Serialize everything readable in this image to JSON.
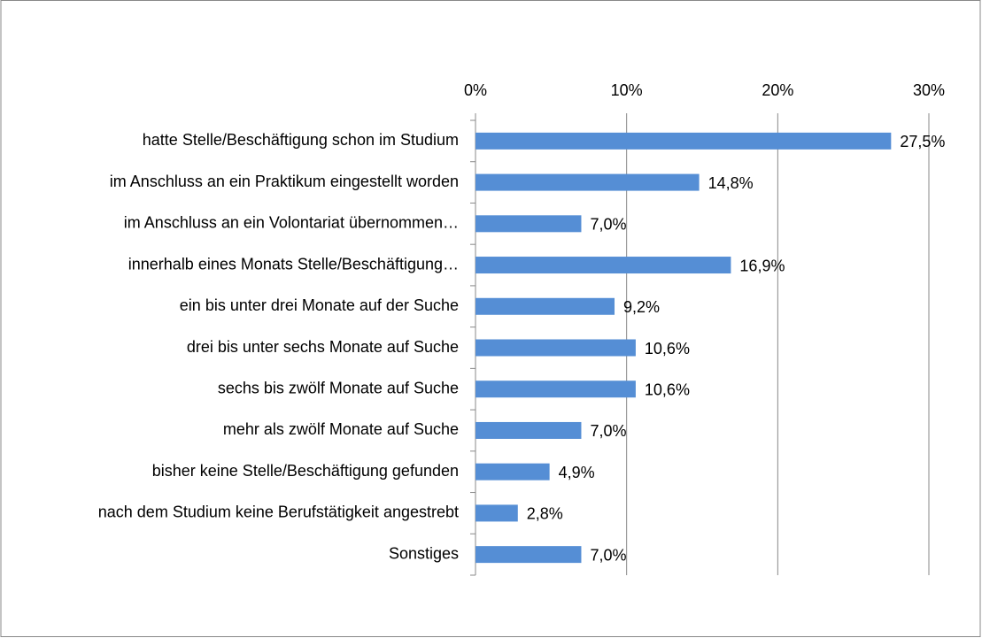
{
  "chart_data": {
    "type": "barh",
    "categories": [
      "hatte Stelle/Beschäftigung schon im Studium",
      "im Anschluss an ein Praktikum eingestellt worden",
      "im Anschluss an ein Volontariat übernommen…",
      "innerhalb eines Monats Stelle/Beschäftigung…",
      "ein bis unter drei Monate auf der Suche",
      "drei bis unter sechs Monate auf Suche",
      "sechs bis zwölf Monate auf Suche",
      "mehr als zwölf Monate auf Suche",
      "bisher keine Stelle/Beschäftigung gefunden",
      "nach dem Studium keine Berufstätigkeit angestrebt",
      "Sonstiges"
    ],
    "values": [
      27.5,
      14.8,
      7.0,
      16.9,
      9.2,
      10.6,
      10.6,
      7.0,
      4.9,
      2.8,
      7.0
    ],
    "value_labels": [
      "27,5%",
      "14,8%",
      "7,0%",
      "16,9%",
      "9,2%",
      "10,6%",
      "10,6%",
      "7,0%",
      "4,9%",
      "2,8%",
      "7,0%"
    ],
    "color": "#558ed5",
    "xlim": [
      0,
      30
    ],
    "xticks": [
      {
        "value": 0,
        "label": "0%"
      },
      {
        "value": 10,
        "label": "10%"
      },
      {
        "value": 20,
        "label": "20%"
      },
      {
        "value": 30,
        "label": "30%"
      }
    ],
    "grid": true
  }
}
